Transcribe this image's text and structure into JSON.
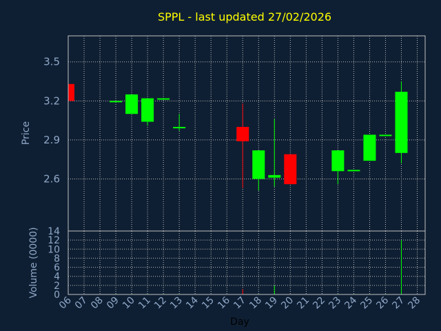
{
  "title": "SPPL - last updated 27/02/2026",
  "colors": {
    "background": "#0f1f33",
    "plot_border": "#c0c0c0",
    "grid": "#c0c0c0",
    "up": "#00ff00",
    "down": "#ff0000",
    "title": "#ffff00",
    "axis_text": "#8fa8c8"
  },
  "chart_data": [
    {
      "type": "candlestick",
      "ylabel": "Price",
      "ylim": [
        2.2,
        3.7
      ],
      "yticks": [
        "2.6",
        "2.9",
        "3.2",
        "3.5"
      ],
      "grid": true,
      "days": [
        "06",
        "07",
        "08",
        "09",
        "10",
        "11",
        "12",
        "13",
        "14",
        "15",
        "16",
        "17",
        "18",
        "19",
        "20",
        "21",
        "22",
        "23",
        "24",
        "25",
        "26",
        "27",
        "28"
      ],
      "candles": [
        {
          "day": "06",
          "open": 3.33,
          "high": 3.33,
          "low": 3.2,
          "close": 3.2
        },
        {
          "day": "09",
          "open": 3.19,
          "high": 3.2,
          "low": 3.19,
          "close": 3.2
        },
        {
          "day": "10",
          "open": 3.1,
          "high": 3.25,
          "low": 3.1,
          "close": 3.25
        },
        {
          "day": "11",
          "open": 3.04,
          "high": 3.22,
          "low": 3.01,
          "close": 3.22
        },
        {
          "day": "12",
          "open": 3.21,
          "high": 3.22,
          "low": 3.21,
          "close": 3.22
        },
        {
          "day": "13",
          "open": 2.99,
          "high": 3.1,
          "low": 2.97,
          "close": 3.0
        },
        {
          "day": "17",
          "open": 3.0,
          "high": 3.18,
          "low": 2.53,
          "close": 2.89
        },
        {
          "day": "18",
          "open": 2.6,
          "high": 2.82,
          "low": 2.51,
          "close": 2.82
        },
        {
          "day": "19",
          "open": 2.61,
          "high": 3.06,
          "low": 2.54,
          "close": 2.63
        },
        {
          "day": "20",
          "open": 2.79,
          "high": 2.79,
          "low": 2.56,
          "close": 2.56
        },
        {
          "day": "23",
          "open": 2.66,
          "high": 2.82,
          "low": 2.56,
          "close": 2.82
        },
        {
          "day": "24",
          "open": 2.66,
          "high": 2.67,
          "low": 2.66,
          "close": 2.67
        },
        {
          "day": "25",
          "open": 2.74,
          "high": 2.94,
          "low": 2.74,
          "close": 2.94
        },
        {
          "day": "26",
          "open": 2.93,
          "high": 2.94,
          "low": 2.93,
          "close": 2.94
        },
        {
          "day": "27",
          "open": 2.8,
          "high": 3.35,
          "low": 2.72,
          "close": 3.27
        }
      ]
    },
    {
      "type": "bar",
      "ylabel": "Volume (0000)",
      "xlabel": "Day",
      "ylim": [
        0,
        14
      ],
      "yticks": [
        "0",
        "2",
        "4",
        "6",
        "8",
        "10",
        "12",
        "14"
      ],
      "grid": true,
      "categories": [
        "06",
        "09",
        "10",
        "11",
        "12",
        "13",
        "17",
        "18",
        "19",
        "20",
        "23",
        "24",
        "25",
        "26",
        "27"
      ],
      "values": [
        0.1,
        0.1,
        0.1,
        0.1,
        0.1,
        0.1,
        1.2,
        0.1,
        2.0,
        0.1,
        0.1,
        0.1,
        0.1,
        0.1,
        12.0
      ],
      "directions": [
        "down",
        "up",
        "up",
        "up",
        "up",
        "up",
        "down",
        "up",
        "up",
        "down",
        "up",
        "up",
        "up",
        "up",
        "up"
      ]
    }
  ]
}
